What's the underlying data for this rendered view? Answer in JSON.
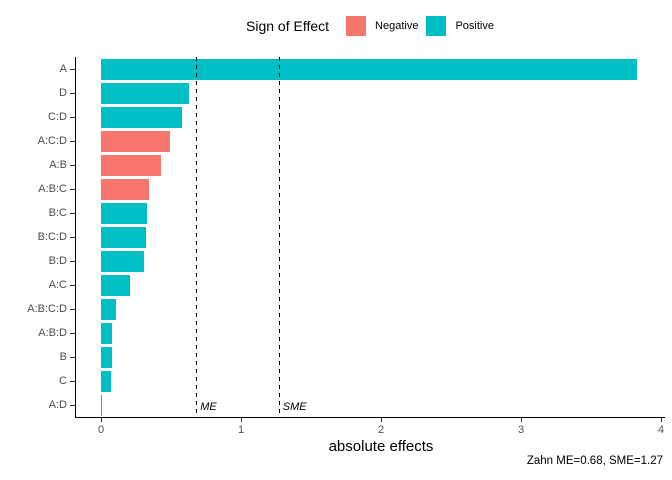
{
  "legend": {
    "title": "Sign of Effect",
    "items": [
      {
        "label": "Negative",
        "color": "#F8766D"
      },
      {
        "label": "Positive",
        "color": "#00BFC4"
      }
    ]
  },
  "chart_data": {
    "type": "bar",
    "orientation": "horizontal",
    "title": "",
    "xlabel": "absolute effects",
    "ylabel": "",
    "xlim": [
      0,
      4
    ],
    "x_ticks": [
      0,
      1,
      2,
      3,
      4
    ],
    "grid": false,
    "legend_position": "top",
    "categories": [
      "A",
      "D",
      "C:D",
      "A:C:D",
      "A:B",
      "A:B:C",
      "B:C",
      "B:C:D",
      "B:D",
      "A:C",
      "A:B:C:D",
      "A:B:D",
      "B",
      "C",
      "A:D"
    ],
    "series": [
      {
        "name": "absolute effect",
        "values": [
          3.83,
          0.63,
          0.58,
          0.49,
          0.43,
          0.34,
          0.33,
          0.32,
          0.31,
          0.21,
          0.11,
          0.08,
          0.08,
          0.07,
          0.005
        ]
      }
    ],
    "signs": [
      "Positive",
      "Positive",
      "Positive",
      "Negative",
      "Negative",
      "Negative",
      "Positive",
      "Positive",
      "Positive",
      "Positive",
      "Positive",
      "Positive",
      "Positive",
      "Positive",
      "Positive"
    ],
    "reference_lines": [
      {
        "label": "ME",
        "value": 0.68
      },
      {
        "label": "SME",
        "value": 1.27
      }
    ]
  },
  "caption": "Zahn ME=0.68, SME=1.27",
  "colors": {
    "negative": "#F8766D",
    "positive": "#00BFC4",
    "axis_line": "#000000",
    "tick_text": "#4d4d4d"
  }
}
